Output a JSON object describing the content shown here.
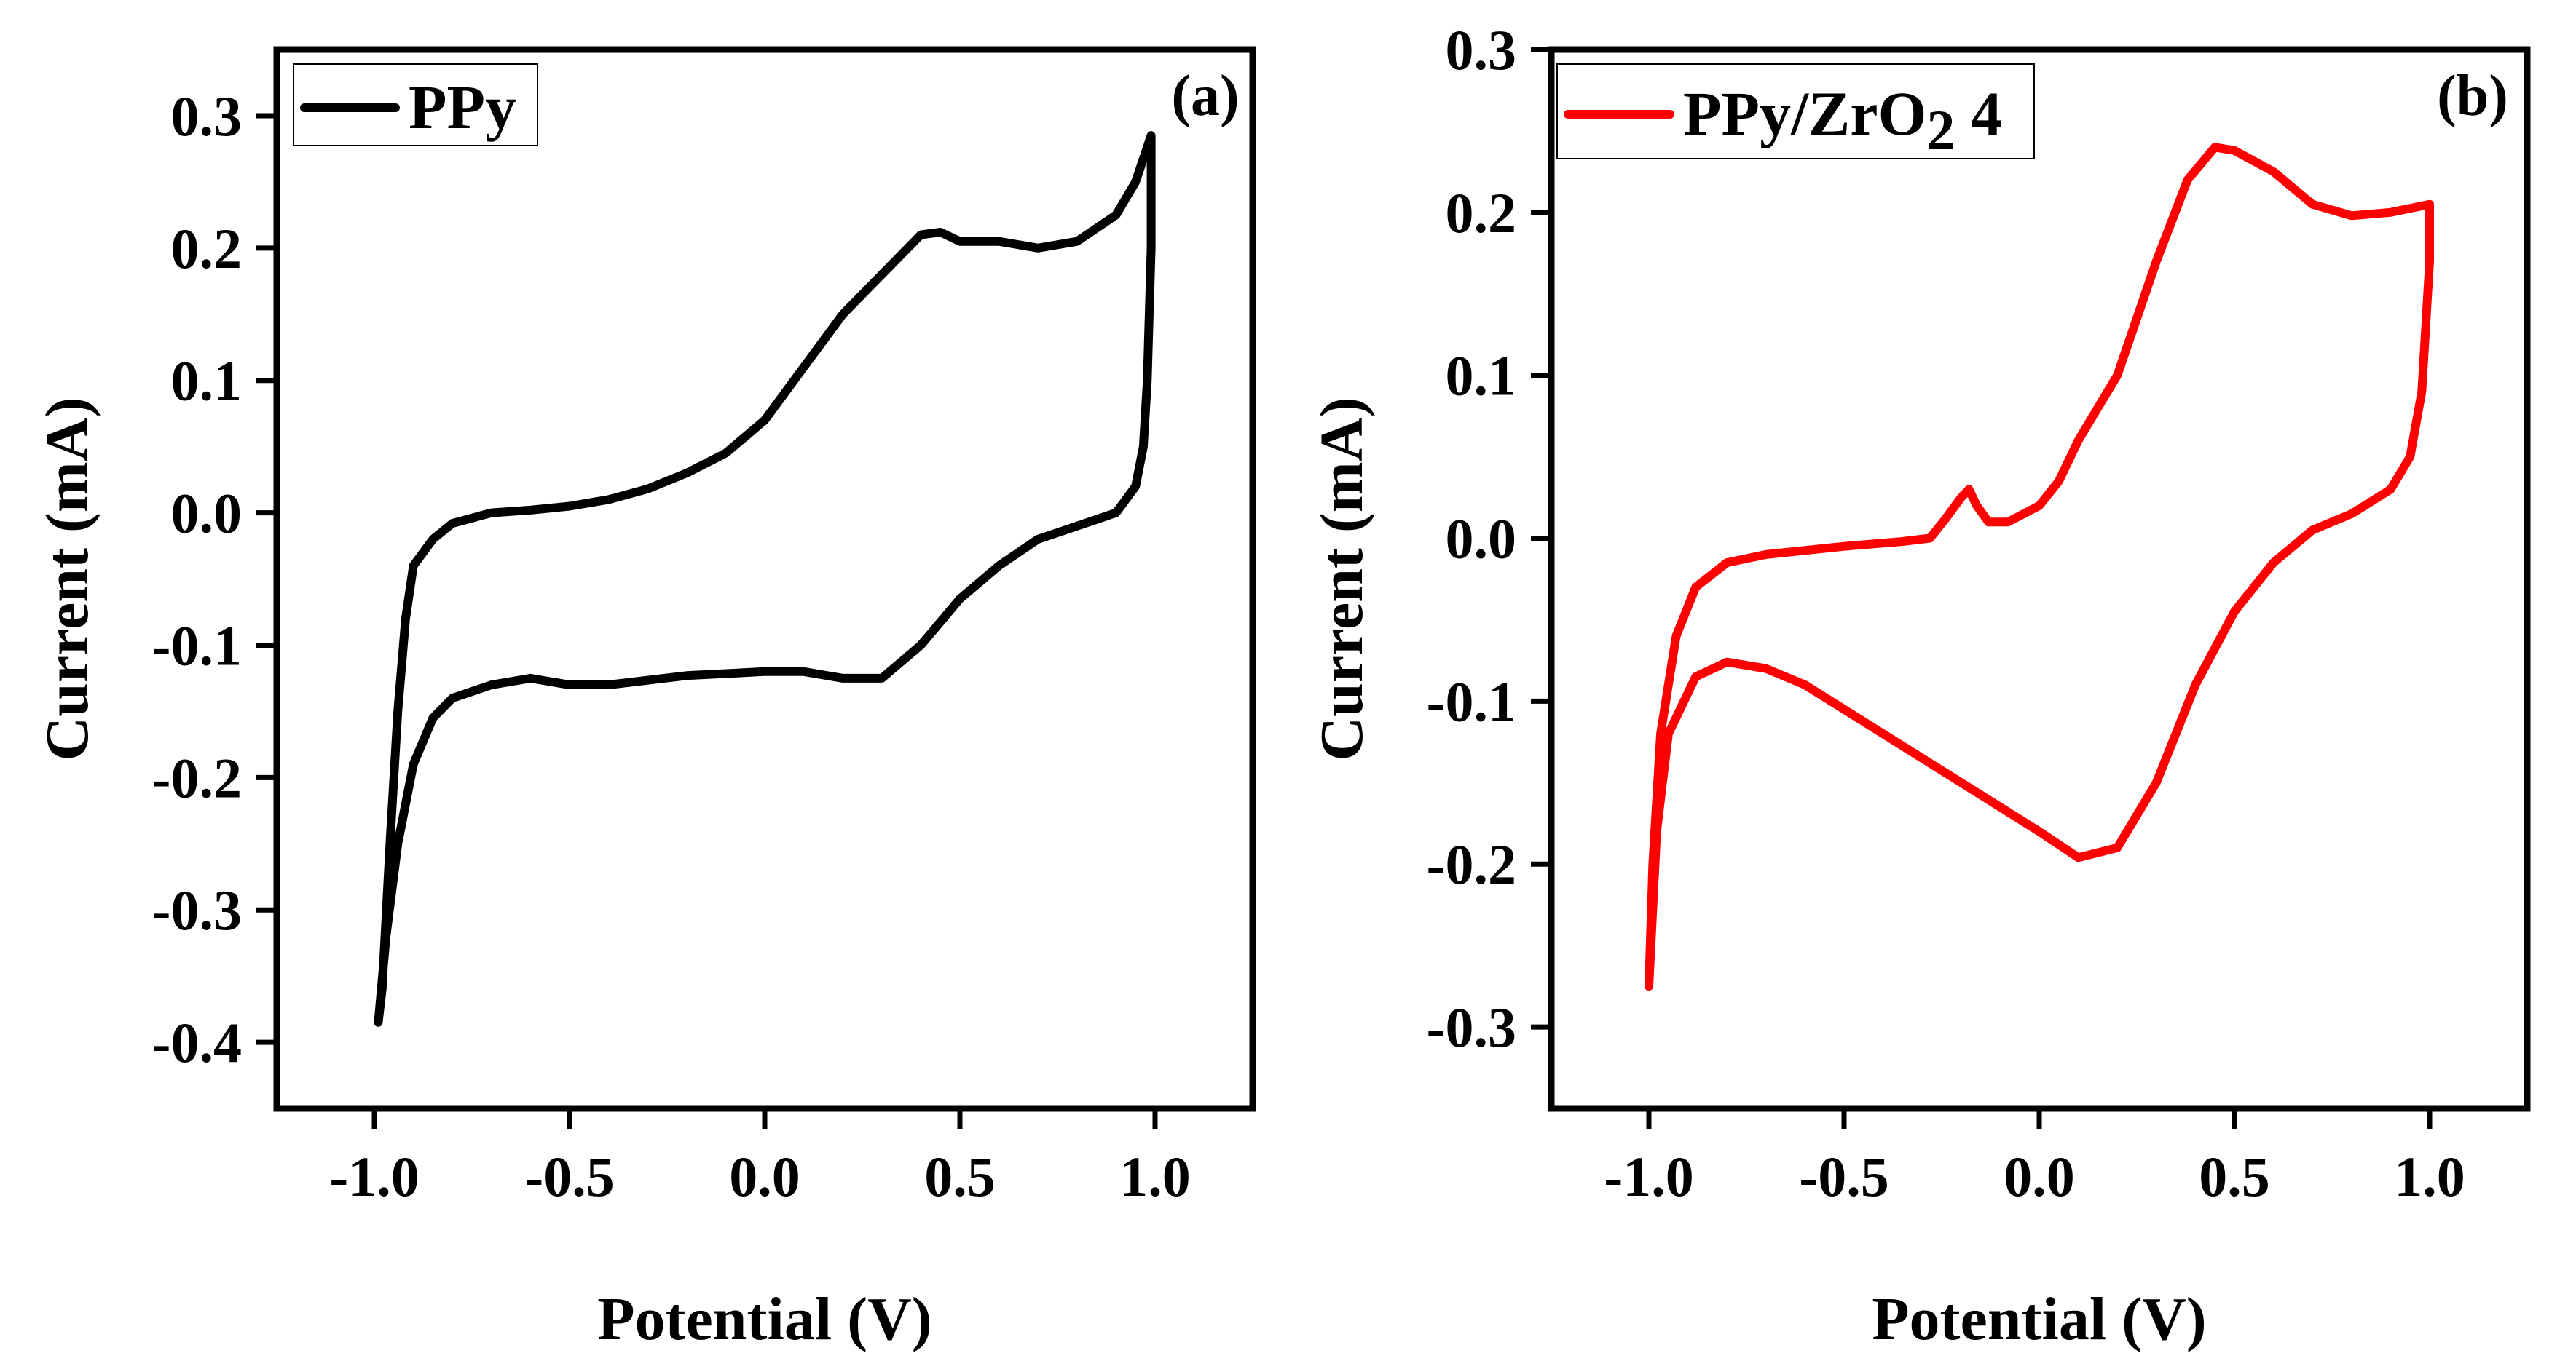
{
  "chart_data": [
    {
      "type": "line",
      "panel_label": "(a)",
      "xlabel": "Potential (V)",
      "ylabel": "Current (mA)",
      "xlim": [
        -1.25,
        1.25
      ],
      "ylim": [
        -0.45,
        0.35
      ],
      "xticks": [
        -1.0,
        -0.5,
        0.0,
        0.5,
        1.0
      ],
      "yticks": [
        -0.4,
        -0.3,
        -0.2,
        -0.1,
        0.0,
        0.1,
        0.2,
        0.3
      ],
      "xtick_labels": [
        "-1.0",
        "-0.5",
        "0.0",
        "0.5",
        "1.0"
      ],
      "ytick_labels": [
        "-0.4",
        "-0.3",
        "-0.2",
        "-0.1",
        "0.0",
        "0.1",
        "0.2",
        "0.3"
      ],
      "legend_position": "top-left",
      "series": [
        {
          "name": "PPy",
          "color": "#000000",
          "points": [
            [
              0.0,
              0.07
            ],
            [
              0.1,
              0.11
            ],
            [
              0.2,
              0.15
            ],
            [
              0.3,
              0.18
            ],
            [
              0.4,
              0.21
            ],
            [
              0.45,
              0.212
            ],
            [
              0.5,
              0.205
            ],
            [
              0.6,
              0.205
            ],
            [
              0.7,
              0.2
            ],
            [
              0.8,
              0.205
            ],
            [
              0.9,
              0.225
            ],
            [
              0.95,
              0.25
            ],
            [
              0.99,
              0.285
            ],
            [
              0.99,
              0.2
            ],
            [
              0.98,
              0.1
            ],
            [
              0.97,
              0.05
            ],
            [
              0.95,
              0.02
            ],
            [
              0.9,
              0.0
            ],
            [
              0.8,
              -0.01
            ],
            [
              0.7,
              -0.02
            ],
            [
              0.6,
              -0.04
            ],
            [
              0.5,
              -0.065
            ],
            [
              0.4,
              -0.1
            ],
            [
              0.3,
              -0.125
            ],
            [
              0.2,
              -0.125
            ],
            [
              0.1,
              -0.12
            ],
            [
              0.0,
              -0.12
            ],
            [
              -0.2,
              -0.123
            ],
            [
              -0.4,
              -0.13
            ],
            [
              -0.5,
              -0.13
            ],
            [
              -0.6,
              -0.125
            ],
            [
              -0.7,
              -0.13
            ],
            [
              -0.8,
              -0.14
            ],
            [
              -0.85,
              -0.155
            ],
            [
              -0.9,
              -0.19
            ],
            [
              -0.94,
              -0.25
            ],
            [
              -0.97,
              -0.32
            ],
            [
              -0.99,
              -0.385
            ],
            [
              -0.98,
              -0.36
            ],
            [
              -0.96,
              -0.25
            ],
            [
              -0.94,
              -0.15
            ],
            [
              -0.92,
              -0.08
            ],
            [
              -0.9,
              -0.04
            ],
            [
              -0.85,
              -0.02
            ],
            [
              -0.8,
              -0.008
            ],
            [
              -0.7,
              0.0
            ],
            [
              -0.6,
              0.002
            ],
            [
              -0.5,
              0.005
            ],
            [
              -0.4,
              0.01
            ],
            [
              -0.3,
              0.018
            ],
            [
              -0.2,
              0.03
            ],
            [
              -0.1,
              0.045
            ],
            [
              0.0,
              0.07
            ]
          ]
        }
      ]
    },
    {
      "type": "line",
      "panel_label": "(b)",
      "xlabel": "Potential (V)",
      "ylabel": "Current (mA)",
      "xlim": [
        -1.25,
        1.25
      ],
      "ylim": [
        -0.35,
        0.3
      ],
      "xticks": [
        -1.0,
        -0.5,
        0.0,
        0.5,
        1.0
      ],
      "yticks": [
        -0.3,
        -0.2,
        -0.1,
        0.0,
        0.1,
        0.2,
        0.3
      ],
      "xtick_labels": [
        "-1.0",
        "-0.5",
        "0.0",
        "0.5",
        "1.0"
      ],
      "ytick_labels": [
        "-0.3",
        "-0.2",
        "-0.1",
        "0.0",
        "0.1",
        "0.2",
        "0.3"
      ],
      "legend_position": "top-left",
      "series": [
        {
          "name": "PPy/ZrO2 4",
          "legend_base": "PPy/ZrO",
          "legend_sub": "2",
          "legend_tail": " 4",
          "color": "#ff0000",
          "points": [
            [
              -1.0,
              -0.275
            ],
            [
              -0.99,
              -0.2
            ],
            [
              -0.97,
              -0.12
            ],
            [
              -0.93,
              -0.06
            ],
            [
              -0.88,
              -0.03
            ],
            [
              -0.8,
              -0.015
            ],
            [
              -0.7,
              -0.01
            ],
            [
              -0.5,
              -0.005
            ],
            [
              -0.35,
              -0.002
            ],
            [
              -0.28,
              0.0
            ],
            [
              -0.24,
              0.012
            ],
            [
              -0.2,
              0.025
            ],
            [
              -0.18,
              0.03
            ],
            [
              -0.16,
              0.02
            ],
            [
              -0.13,
              0.01
            ],
            [
              -0.08,
              0.01
            ],
            [
              0.0,
              0.02
            ],
            [
              0.05,
              0.035
            ],
            [
              0.1,
              0.06
            ],
            [
              0.2,
              0.1
            ],
            [
              0.3,
              0.17
            ],
            [
              0.38,
              0.22
            ],
            [
              0.45,
              0.24
            ],
            [
              0.5,
              0.238
            ],
            [
              0.6,
              0.225
            ],
            [
              0.7,
              0.205
            ],
            [
              0.8,
              0.198
            ],
            [
              0.9,
              0.2
            ],
            [
              1.0,
              0.205
            ],
            [
              1.0,
              0.17
            ],
            [
              0.98,
              0.09
            ],
            [
              0.95,
              0.05
            ],
            [
              0.9,
              0.03
            ],
            [
              0.8,
              0.015
            ],
            [
              0.7,
              0.005
            ],
            [
              0.6,
              -0.015
            ],
            [
              0.5,
              -0.045
            ],
            [
              0.4,
              -0.09
            ],
            [
              0.3,
              -0.15
            ],
            [
              0.2,
              -0.19
            ],
            [
              0.1,
              -0.196
            ],
            [
              0.0,
              -0.18
            ],
            [
              -0.2,
              -0.15
            ],
            [
              -0.4,
              -0.12
            ],
            [
              -0.6,
              -0.09
            ],
            [
              -0.7,
              -0.08
            ],
            [
              -0.8,
              -0.076
            ],
            [
              -0.88,
              -0.085
            ],
            [
              -0.95,
              -0.12
            ],
            [
              -0.98,
              -0.18
            ],
            [
              -1.0,
              -0.275
            ]
          ]
        }
      ]
    }
  ]
}
